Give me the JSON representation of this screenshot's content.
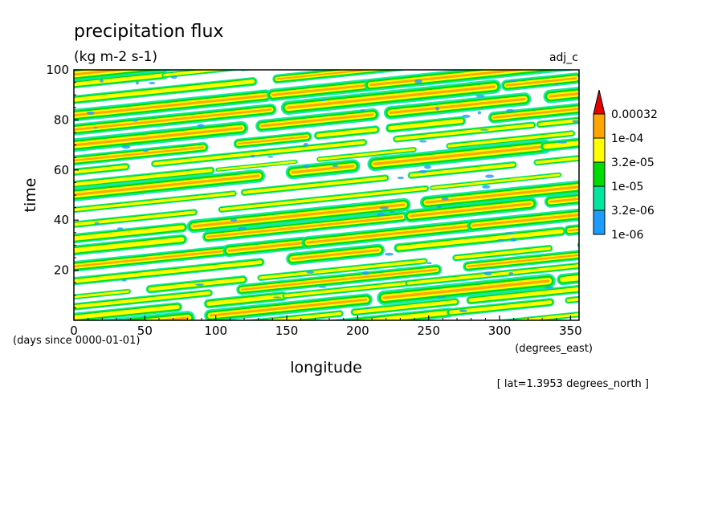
{
  "chart_data": {
    "type": "heatmap",
    "title": "precipitation flux",
    "units": "(kg m-2 s-1)",
    "experiment": "adj_c",
    "xlabel": "longitude",
    "x_units": "(degrees_east)",
    "ylabel": "time",
    "y_units": "(days since 0000-01-01)",
    "xlim": [
      0,
      356
    ],
    "ylim": [
      0,
      100
    ],
    "x_ticks": [
      0,
      50,
      100,
      150,
      200,
      250,
      300,
      350
    ],
    "y_ticks": [
      20,
      40,
      60,
      80,
      100
    ],
    "annotation": "[ lat=1.3953 degrees_north ]",
    "colorbar": {
      "labels": [
        "1e-06",
        "3.2e-06",
        "1e-05",
        "3.2e-05",
        "1e-04",
        "0.00032"
      ],
      "levels": [
        1e-06,
        3.2e-06,
        1e-05,
        3.2e-05,
        0.0001,
        0.00032
      ],
      "colors": [
        "#1e9bff",
        "#00e6a0",
        "#00dc00",
        "#ffff00",
        "#ffa500",
        "#e60000"
      ],
      "extend": "max"
    },
    "pattern": {
      "description_free": true,
      "propagation_slope_days_per_degree": 0.058,
      "band_spacing_days": 5.2
    }
  }
}
